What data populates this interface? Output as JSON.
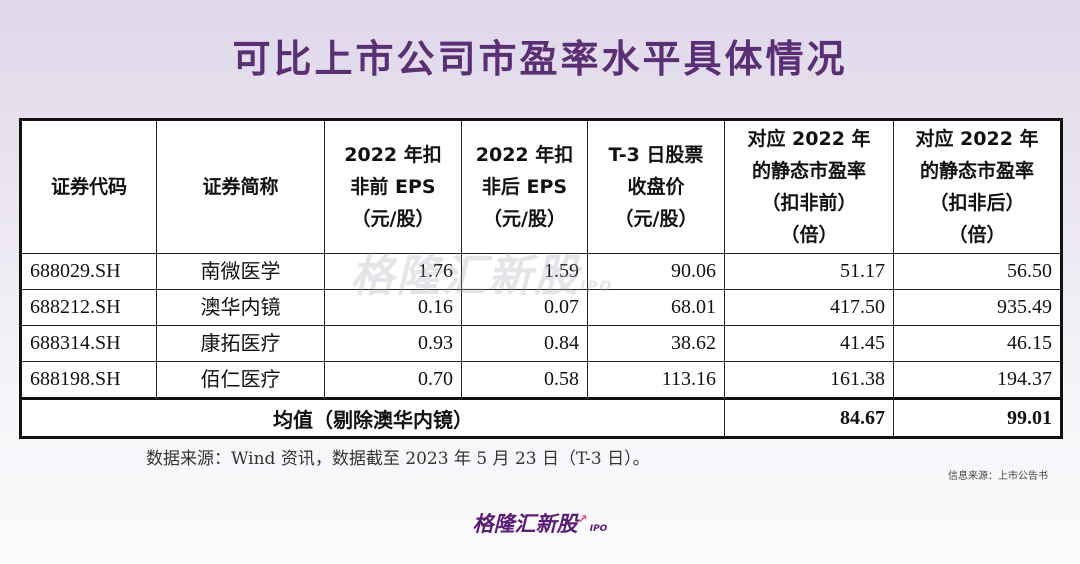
{
  "title": "可比上市公司市盈率水平具体情况",
  "table": {
    "headers": [
      "证券代码",
      "证券简称",
      "2022 年扣\n非前 EPS\n（元/股）",
      "2022 年扣\n非后  EPS\n（元/股）",
      "T-3 日股票\n收盘价\n（元/股）",
      "对应 2022 年\n的静态市盈率\n（扣非前）\n（倍）",
      "对应 2022 年\n的静态市盈率\n（扣非后）\n（倍）"
    ],
    "rows": [
      {
        "code": "688029.SH",
        "name": "南微医学",
        "eps_pre": "1.76",
        "eps_post": "1.59",
        "close": "90.06",
        "pe_pre": "51.17",
        "pe_post": "56.50"
      },
      {
        "code": "688212.SH",
        "name": "澳华内镜",
        "eps_pre": "0.16",
        "eps_post": "0.07",
        "close": "68.01",
        "pe_pre": "417.50",
        "pe_post": "935.49"
      },
      {
        "code": "688314.SH",
        "name": "康拓医疗",
        "eps_pre": "0.93",
        "eps_post": "0.84",
        "close": "38.62",
        "pe_pre": "41.45",
        "pe_post": "46.15"
      },
      {
        "code": "688198.SH",
        "name": "佰仁医疗",
        "eps_pre": "0.70",
        "eps_post": "0.58",
        "close": "113.16",
        "pe_pre": "161.38",
        "pe_post": "194.37"
      }
    ],
    "average": {
      "label": "均值（剔除澳华内镜）",
      "pe_pre": "84.67",
      "pe_post": "99.01"
    }
  },
  "watermark": {
    "text": "格隆汇新股",
    "suffix": "IPO"
  },
  "source_note": "数据来源：Wind 资讯，数据截至 2023 年 5 月 23 日（T-3 日）。",
  "info_source": "信息来源：上市公告书",
  "brand": {
    "name": "格隆汇新股",
    "suffix": "IPO",
    "arrow": "↗"
  }
}
